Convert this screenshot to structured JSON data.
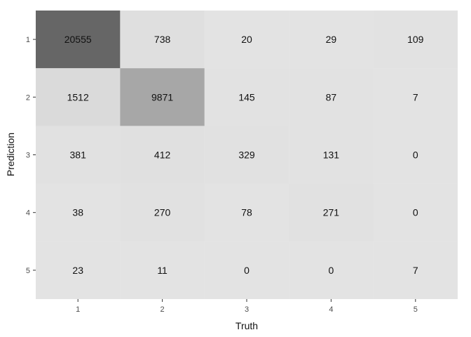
{
  "chart_data": {
    "type": "heatmap",
    "xlabel": "Truth",
    "ylabel": "Prediction",
    "x_categories": [
      "1",
      "2",
      "3",
      "4",
      "5"
    ],
    "y_categories": [
      "1",
      "2",
      "3",
      "4",
      "5"
    ],
    "values": [
      [
        20555,
        738,
        20,
        29,
        109
      ],
      [
        1512,
        9871,
        145,
        87,
        7
      ],
      [
        381,
        412,
        329,
        131,
        0
      ],
      [
        38,
        270,
        78,
        271,
        0
      ],
      [
        23,
        11,
        0,
        0,
        7
      ]
    ],
    "colors": {
      "low": "#e3e3e3",
      "high": "#666666",
      "panel": "#ebebeb",
      "text": "#111111",
      "tick": "#4d4d4d"
    },
    "grid": false,
    "legend": "none"
  }
}
